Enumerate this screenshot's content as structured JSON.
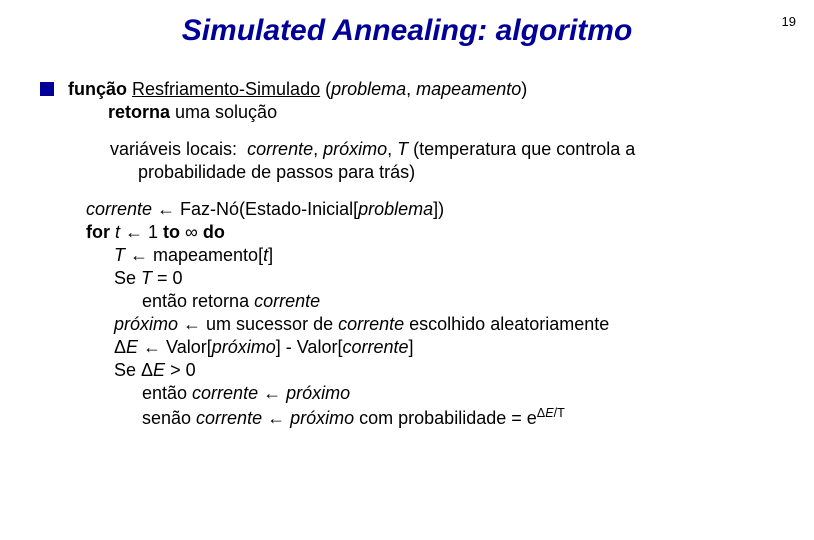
{
  "page_number": "19",
  "title": "Simulated Annealing: algoritmo",
  "colors": {
    "title_color": "#000099",
    "bullet_color": "#000099",
    "text_color": "#000000",
    "background": "#ffffff"
  },
  "typography": {
    "title_fontsize": 30,
    "body_fontsize": 18,
    "page_number_fontsize": 13
  },
  "func_line": {
    "prefix": "função ",
    "name": "Resfriamento-Simulado",
    "params_open": " (",
    "param1": "problema",
    "param_sep": ", ",
    "param2": "mapeamento",
    "params_close": ")"
  },
  "returns_line": {
    "retorna": "retorna",
    "rest": " uma solução"
  },
  "vars_line": {
    "label": "variáveis locais:  ",
    "v1": "corrente",
    "sep1": ", ",
    "v2": "próximo",
    "sep2": ", ",
    "v3": "T ",
    "rest1": "(temperatura que controla a",
    "rest2": "probabilidade de passos para trás)"
  },
  "algo": {
    "l1a": "corrente",
    "l1b": " ← Faz-Nó(Estado-Inicial[",
    "l1c": "problema",
    "l1d": "])",
    "l2a": "for",
    "l2b": " t",
    "l2c": " ← 1 ",
    "l2d": "to",
    "l2e": " ∞ ",
    "l2f": "do",
    "l3a": "T",
    "l3b": " ← mapeamento[",
    "l3c": "t",
    "l3d": "]",
    "l4a": "Se ",
    "l4b": "T",
    "l4c": " = 0",
    "l5a": "então retorna ",
    "l5b": "corrente",
    "l6a": "próximo",
    "l6b": " ← um sucessor de ",
    "l6c": "corrente",
    "l6d": " escolhido aleatoriamente",
    "l7a": "Δ",
    "l7b": "E",
    "l7c": " ← Valor[",
    "l7d": "próximo",
    "l7e": "] - Valor[",
    "l7f": "corrente",
    "l7g": "]",
    "l8a": "Se Δ",
    "l8b": "E",
    "l8c": " > 0",
    "l9a": "então ",
    "l9b": "corrente",
    "l9c": " ← ",
    "l9d": "próximo",
    "l10a": "senão ",
    "l10b": "corrente",
    "l10c": " ← ",
    "l10d": "próximo",
    "l10e": " com probabilidade = e",
    "l10exp1": "Δ",
    "l10exp2": "E",
    "l10exp3": "/T"
  }
}
